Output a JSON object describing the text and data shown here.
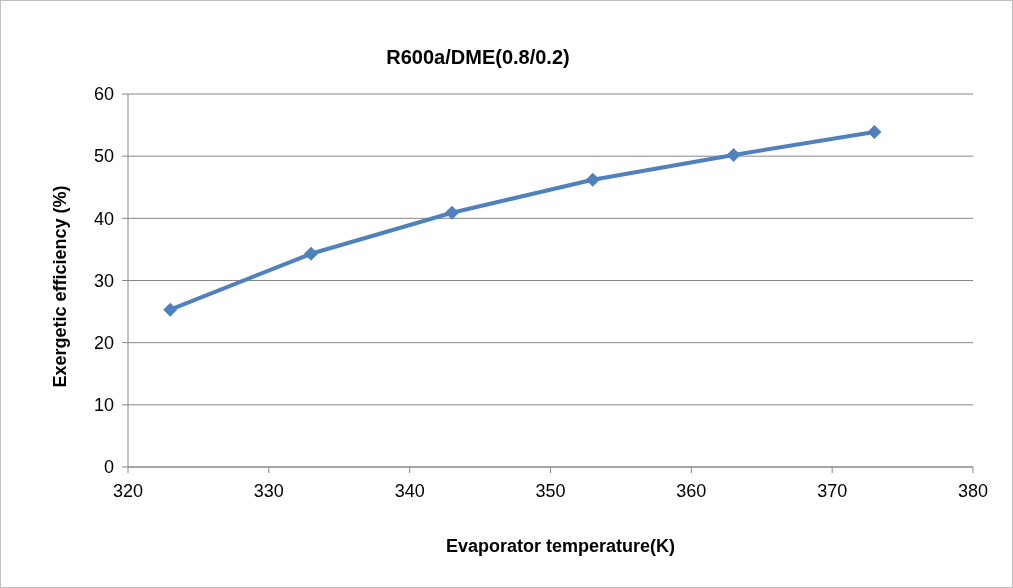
{
  "chart_data": {
    "type": "line",
    "title": "R600a/DME(0.8/0.2)",
    "xlabel": "Evaporator temperature(K)",
    "ylabel": "Exergetic efficiency (%)",
    "x": [
      323,
      333,
      343,
      353,
      363,
      373
    ],
    "series": [
      {
        "color": "#4f81bd",
        "values": [
          25.3,
          34.3,
          40.9,
          46.2,
          50.2,
          53.9
        ]
      }
    ],
    "xlim": [
      320,
      380
    ],
    "xticks": [
      320,
      330,
      340,
      350,
      360,
      370,
      380
    ],
    "ylim": [
      0,
      60
    ],
    "yticks": [
      0,
      10,
      20,
      30,
      40,
      50,
      60
    ],
    "grid": "y",
    "marker": "diamond",
    "line_style": "solid"
  }
}
